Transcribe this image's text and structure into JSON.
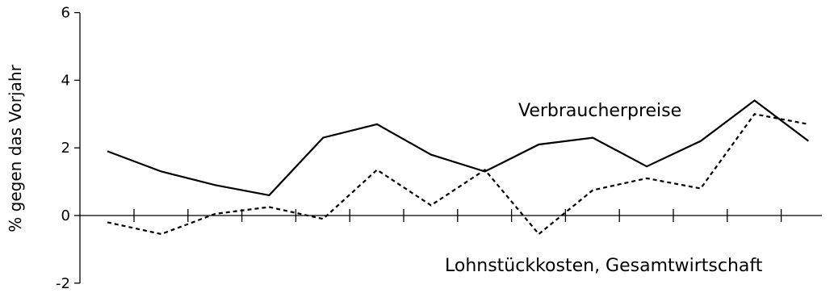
{
  "chart_data": {
    "type": "line",
    "title": "",
    "xlabel": "",
    "ylabel": "% gegen das Vorjahr",
    "ylim": [
      -2,
      6
    ],
    "y_ticks": [
      "6",
      "4",
      "2",
      "0",
      "-2"
    ],
    "grid": false,
    "x": [
      1,
      2,
      3,
      4,
      5,
      6,
      7,
      8,
      9,
      10,
      11,
      12,
      13,
      14
    ],
    "series": [
      {
        "name": "Verbraucherpreise",
        "style": "solid",
        "color": "#000000",
        "values": [
          1.9,
          1.3,
          0.9,
          0.6,
          2.3,
          2.7,
          1.8,
          1.3,
          2.1,
          2.3,
          1.45,
          2.2,
          3.4,
          2.2
        ]
      },
      {
        "name": "Lohnstückkosten, Gesamtwirtschaft",
        "style": "dashed",
        "color": "#000000",
        "values": [
          -0.2,
          -0.55,
          0.05,
          0.25,
          -0.1,
          1.35,
          0.3,
          1.35,
          -0.55,
          0.75,
          1.1,
          0.8,
          3.0,
          2.7
        ]
      }
    ]
  }
}
